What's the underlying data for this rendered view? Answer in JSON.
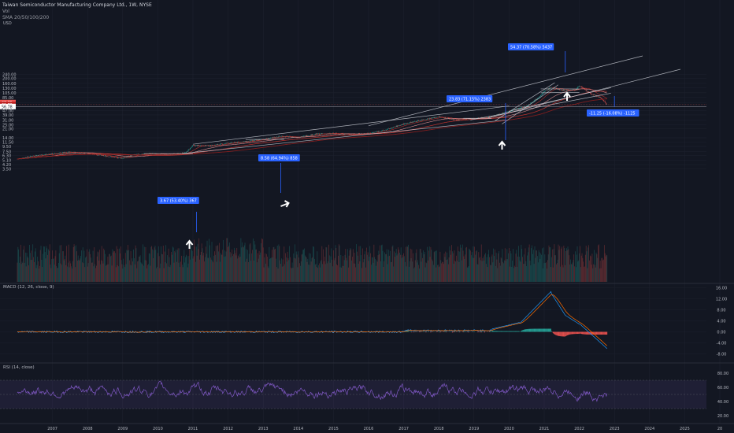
{
  "header": {
    "title": "Taiwan Semiconductor Manufacturing Company Ltd., 1W, NYSE",
    "vol": "Vol",
    "sma": "SMA 20/50/100/200"
  },
  "currency": "USD",
  "colors": {
    "bg": "#131722",
    "grid": "#1f2330",
    "up": "#26a69a",
    "down": "#ef5350",
    "sma_red": "#c2342f",
    "sma_dark": "#8b1e1e",
    "channel": "#d1d4dc",
    "callout": "#2962ff",
    "macd": "#2196f3",
    "signal": "#ff6d00",
    "rsi": "#7e57c2"
  },
  "chart_data": [
    {
      "type": "line",
      "name": "price",
      "y_scale": "log",
      "y_ticks": [
        "240.00",
        "200.00",
        "160.00",
        "130.00",
        "105.00",
        "85.00",
        "67.00",
        "56.78",
        "47.00",
        "39.00",
        "31.00",
        "25.00",
        "21.00",
        "14.00",
        "11.50",
        "9.50",
        "7.50",
        "6.30",
        "5.10",
        "4.20",
        "3.50"
      ],
      "x_ticks": [
        "2007",
        "2008",
        "2009",
        "2010",
        "2011",
        "2012",
        "2013",
        "2014",
        "2015",
        "2016",
        "2017",
        "2018",
        "2019",
        "2020",
        "2021",
        "2022",
        "2023",
        "2024",
        "2025",
        "20"
      ],
      "price_tags": [
        "67.75",
        "61.78",
        "56.78"
      ],
      "series_points": [
        [
          2006.0,
          5.4
        ],
        [
          2006.5,
          6.3
        ],
        [
          2007.0,
          6.8
        ],
        [
          2007.5,
          7.4
        ],
        [
          2008.0,
          7.0
        ],
        [
          2008.5,
          6.2
        ],
        [
          2009.0,
          5.6
        ],
        [
          2009.3,
          6.5
        ],
        [
          2009.8,
          6.9
        ],
        [
          2010.3,
          6.6
        ],
        [
          2010.8,
          7.2
        ],
        [
          2011.0,
          9.9
        ],
        [
          2011.5,
          9.8
        ],
        [
          2012.0,
          11.0
        ],
        [
          2012.5,
          11.8
        ],
        [
          2013.0,
          13.0
        ],
        [
          2013.5,
          15.0
        ],
        [
          2014.0,
          14.3
        ],
        [
          2014.5,
          16.5
        ],
        [
          2015.0,
          17.0
        ],
        [
          2015.5,
          16.5
        ],
        [
          2016.0,
          17.0
        ],
        [
          2016.5,
          20.0
        ],
        [
          2017.0,
          26.0
        ],
        [
          2017.5,
          31.0
        ],
        [
          2018.0,
          36.0
        ],
        [
          2018.5,
          31.0
        ],
        [
          2019.0,
          33.0
        ],
        [
          2019.5,
          36.0
        ],
        [
          2020.0,
          46.0
        ],
        [
          2020.5,
          58.0
        ],
        [
          2020.8,
          82.0
        ],
        [
          2021.0,
          110.0
        ],
        [
          2021.2,
          135.0
        ],
        [
          2021.5,
          118.0
        ],
        [
          2021.9,
          120.0
        ],
        [
          2022.0,
          145.0
        ],
        [
          2022.3,
          102.0
        ],
        [
          2022.55,
          88.0
        ],
        [
          2022.7,
          73.0
        ],
        [
          2022.8,
          60.5
        ]
      ]
    },
    {
      "type": "bar",
      "name": "Vol"
    },
    {
      "type": "line",
      "name": "MACD (12, 26, close, 9)",
      "y_ticks": [
        "16.00",
        "12.00",
        "8.00",
        "4.00",
        "0.00",
        "-4.00",
        "-8.00"
      ]
    },
    {
      "type": "line",
      "name": "RSI (14, close)",
      "y_ticks": [
        "80.00",
        "60.00",
        "40.00",
        "20.00"
      ]
    }
  ],
  "annotations": [
    {
      "text": "3.67 (53.40%) 367"
    },
    {
      "text": "8.58 (64.94%) 858"
    },
    {
      "text": "23.83 (71.15%) 2383"
    },
    {
      "text": "54.37 (70.58%) 5437"
    },
    {
      "text": "-11.25 (-16.08%) -1125"
    }
  ],
  "macd_label": "MACD (12, 26, close, 9)",
  "rsi_label": "RSI (14, close)"
}
